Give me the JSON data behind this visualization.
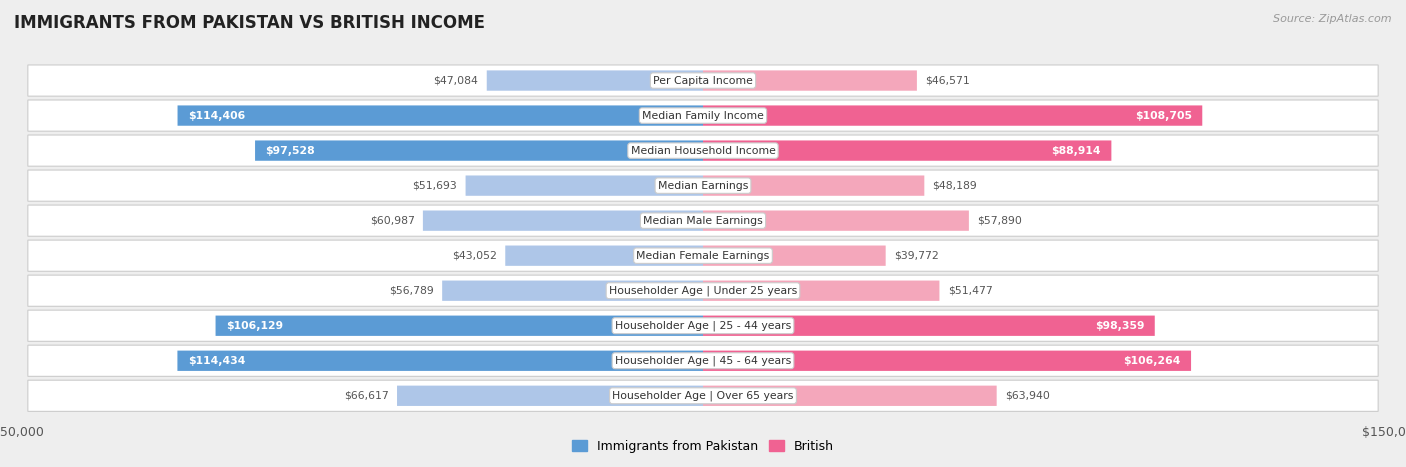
{
  "title": "IMMIGRANTS FROM PAKISTAN VS BRITISH INCOME",
  "source": "Source: ZipAtlas.com",
  "categories": [
    "Per Capita Income",
    "Median Family Income",
    "Median Household Income",
    "Median Earnings",
    "Median Male Earnings",
    "Median Female Earnings",
    "Householder Age | Under 25 years",
    "Householder Age | 25 - 44 years",
    "Householder Age | 45 - 64 years",
    "Householder Age | Over 65 years"
  ],
  "pakistan_values": [
    47084,
    114406,
    97528,
    51693,
    60987,
    43052,
    56789,
    106129,
    114434,
    66617
  ],
  "british_values": [
    46571,
    108705,
    88914,
    48189,
    57890,
    39772,
    51477,
    98359,
    106264,
    63940
  ],
  "pakistan_labels": [
    "$47,084",
    "$114,406",
    "$97,528",
    "$51,693",
    "$60,987",
    "$43,052",
    "$56,789",
    "$106,129",
    "$114,434",
    "$66,617"
  ],
  "british_labels": [
    "$46,571",
    "$108,705",
    "$88,914",
    "$48,189",
    "$57,890",
    "$39,772",
    "$51,477",
    "$98,359",
    "$106,264",
    "$63,940"
  ],
  "pakistan_highlight": [
    false,
    true,
    true,
    false,
    false,
    false,
    false,
    true,
    true,
    false
  ],
  "british_highlight": [
    false,
    true,
    true,
    false,
    false,
    false,
    false,
    true,
    true,
    false
  ],
  "pakistan_color_normal": "#aec6e8",
  "pakistan_color_highlight": "#5b9bd5",
  "british_color_normal": "#f4a7bb",
  "british_color_highlight": "#f06292",
  "label_color_highlight": "#ffffff",
  "label_color_normal": "#555555",
  "max_value": 150000,
  "bar_height": 0.58,
  "background_color": "#eeeeee",
  "row_bg_color": "#ffffff",
  "legend_pakistan": "Immigrants from Pakistan",
  "legend_british": "British"
}
